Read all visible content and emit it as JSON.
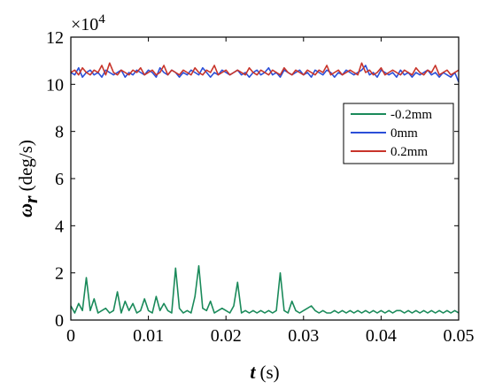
{
  "chart_data": {
    "type": "line",
    "xlabel_symbol": "t",
    "xlabel_unit": "(s)",
    "ylabel_symbol": "ω",
    "ylabel_sub": "r",
    "ylabel_unit": "(deg/s)",
    "y_exponent_label": "×10",
    "y_exponent_power": "4",
    "xlim": [
      0,
      0.05
    ],
    "ylim": [
      0,
      12
    ],
    "x_ticks": [
      "0",
      "0.01",
      "0.02",
      "0.03",
      "0.04",
      "0.05"
    ],
    "y_ticks": [
      "0",
      "2",
      "4",
      "6",
      "8",
      "10",
      "12"
    ],
    "legend_position": "top-right",
    "grid": false,
    "x": [
      0.0,
      0.0005,
      0.001,
      0.0015,
      0.002,
      0.0025,
      0.003,
      0.0035,
      0.004,
      0.0045,
      0.005,
      0.0055,
      0.006,
      0.0065,
      0.007,
      0.0075,
      0.008,
      0.0085,
      0.009,
      0.0095,
      0.01,
      0.0105,
      0.011,
      0.0115,
      0.012,
      0.0125,
      0.013,
      0.0135,
      0.014,
      0.0145,
      0.015,
      0.0155,
      0.016,
      0.0165,
      0.017,
      0.0175,
      0.018,
      0.0185,
      0.019,
      0.0195,
      0.02,
      0.0205,
      0.021,
      0.0215,
      0.022,
      0.0225,
      0.023,
      0.0235,
      0.024,
      0.0245,
      0.025,
      0.0255,
      0.026,
      0.0265,
      0.027,
      0.0275,
      0.028,
      0.0285,
      0.029,
      0.0295,
      0.03,
      0.0305,
      0.031,
      0.0315,
      0.032,
      0.0325,
      0.033,
      0.0335,
      0.034,
      0.0345,
      0.035,
      0.0355,
      0.036,
      0.0365,
      0.037,
      0.0375,
      0.038,
      0.0385,
      0.039,
      0.0395,
      0.04,
      0.0405,
      0.041,
      0.0415,
      0.042,
      0.0425,
      0.043,
      0.0435,
      0.044,
      0.0445,
      0.045,
      0.0455,
      0.046,
      0.0465,
      0.047,
      0.0475,
      0.048,
      0.0485,
      0.049,
      0.0495,
      0.05
    ],
    "series": [
      {
        "name": "-0.2mm",
        "color": "#1a8a5a",
        "values": [
          0.6,
          0.3,
          0.7,
          0.4,
          1.8,
          0.4,
          0.9,
          0.3,
          0.4,
          0.5,
          0.3,
          0.4,
          1.2,
          0.3,
          0.8,
          0.4,
          0.7,
          0.3,
          0.4,
          0.9,
          0.4,
          0.3,
          1.0,
          0.4,
          0.7,
          0.4,
          0.3,
          2.2,
          0.5,
          0.3,
          0.4,
          0.3,
          1.0,
          2.3,
          0.5,
          0.4,
          0.8,
          0.3,
          0.4,
          0.5,
          0.4,
          0.3,
          0.6,
          1.6,
          0.3,
          0.4,
          0.3,
          0.4,
          0.3,
          0.4,
          0.3,
          0.4,
          0.3,
          0.4,
          2.0,
          0.4,
          0.3,
          0.8,
          0.4,
          0.3,
          0.4,
          0.5,
          0.6,
          0.4,
          0.3,
          0.4,
          0.3,
          0.3,
          0.4,
          0.3,
          0.4,
          0.3,
          0.4,
          0.3,
          0.4,
          0.3,
          0.4,
          0.3,
          0.4,
          0.3,
          0.4,
          0.3,
          0.4,
          0.3,
          0.4,
          0.4,
          0.3,
          0.4,
          0.3,
          0.4,
          0.3,
          0.4,
          0.3,
          0.4,
          0.3,
          0.4,
          0.3,
          0.4,
          0.3,
          0.4,
          0.3
        ]
      },
      {
        "name": "0mm",
        "color": "#2b4fd8",
        "values": [
          10.5,
          10.4,
          10.7,
          10.3,
          10.5,
          10.6,
          10.4,
          10.5,
          10.3,
          10.6,
          10.5,
          10.4,
          10.5,
          10.6,
          10.3,
          10.5,
          10.4,
          10.6,
          10.5,
          10.4,
          10.6,
          10.5,
          10.3,
          10.7,
          10.5,
          10.4,
          10.6,
          10.5,
          10.3,
          10.5,
          10.4,
          10.6,
          10.5,
          10.4,
          10.7,
          10.5,
          10.3,
          10.5,
          10.4,
          10.6,
          10.5,
          10.4,
          10.5,
          10.6,
          10.4,
          10.5,
          10.3,
          10.5,
          10.6,
          10.4,
          10.5,
          10.7,
          10.4,
          10.5,
          10.3,
          10.6,
          10.5,
          10.4,
          10.5,
          10.6,
          10.4,
          10.5,
          10.3,
          10.6,
          10.5,
          10.4,
          10.6,
          10.5,
          10.3,
          10.5,
          10.4,
          10.6,
          10.5,
          10.4,
          10.5,
          10.6,
          10.8,
          10.4,
          10.5,
          10.3,
          10.6,
          10.5,
          10.4,
          10.5,
          10.3,
          10.6,
          10.4,
          10.5,
          10.3,
          10.5,
          10.4,
          10.5,
          10.6,
          10.4,
          10.5,
          10.3,
          10.5,
          10.4,
          10.3,
          10.5,
          10.1
        ]
      },
      {
        "name": "0.2mm",
        "color": "#c8342a",
        "values": [
          10.5,
          10.6,
          10.4,
          10.7,
          10.5,
          10.4,
          10.6,
          10.5,
          10.8,
          10.4,
          10.9,
          10.5,
          10.4,
          10.6,
          10.5,
          10.4,
          10.6,
          10.5,
          10.7,
          10.4,
          10.5,
          10.6,
          10.4,
          10.5,
          10.8,
          10.4,
          10.6,
          10.5,
          10.4,
          10.6,
          10.5,
          10.4,
          10.7,
          10.5,
          10.4,
          10.6,
          10.5,
          10.8,
          10.4,
          10.5,
          10.6,
          10.4,
          10.5,
          10.6,
          10.5,
          10.4,
          10.7,
          10.5,
          10.4,
          10.6,
          10.5,
          10.4,
          10.6,
          10.5,
          10.4,
          10.7,
          10.5,
          10.4,
          10.6,
          10.5,
          10.4,
          10.6,
          10.5,
          10.4,
          10.6,
          10.5,
          10.8,
          10.4,
          10.5,
          10.6,
          10.4,
          10.5,
          10.6,
          10.5,
          10.4,
          10.9,
          10.5,
          10.6,
          10.4,
          10.5,
          10.7,
          10.4,
          10.5,
          10.6,
          10.5,
          10.4,
          10.6,
          10.5,
          10.4,
          10.7,
          10.5,
          10.4,
          10.6,
          10.5,
          10.8,
          10.4,
          10.5,
          10.6,
          10.4,
          10.5,
          10.6
        ]
      }
    ]
  }
}
